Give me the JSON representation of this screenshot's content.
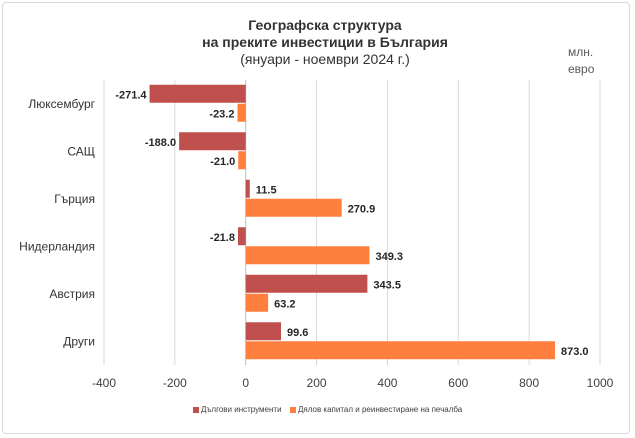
{
  "chart_data": {
    "type": "bar",
    "orientation": "horizontal",
    "title": [
      "Географска структура",
      "на преките инвестиции в България",
      "(януари - ноември 2024 г.)"
    ],
    "unit": [
      "млн.",
      "евро"
    ],
    "categories": [
      "Люксембург",
      "САЩ",
      "Гърция",
      "Нидерландия",
      "Австрия",
      "Други"
    ],
    "series": [
      {
        "name": "Дългови инструменти",
        "color": "#c0504d",
        "values": [
          -271.4,
          -188.0,
          11.5,
          -21.8,
          343.5,
          99.6
        ],
        "labels": [
          "-271.4",
          "-188.0",
          "11.5",
          "-21.8",
          "343.5",
          "99.6"
        ]
      },
      {
        "name": "Дялов капитал и реинвестиране на печалба",
        "color": "#ff7f3f",
        "values": [
          -23.2,
          -21.0,
          270.9,
          349.3,
          63.2,
          873.0
        ],
        "labels": [
          "-23.2",
          "-21.0",
          "270.9",
          "349.3",
          "63.2",
          "873.0"
        ]
      }
    ],
    "xlim": [
      -400,
      1000
    ],
    "xticks": [
      "-400",
      "-200",
      "0",
      "200",
      "400",
      "600",
      "800",
      "1000"
    ],
    "grid": "vertical",
    "legend": "bottom"
  }
}
